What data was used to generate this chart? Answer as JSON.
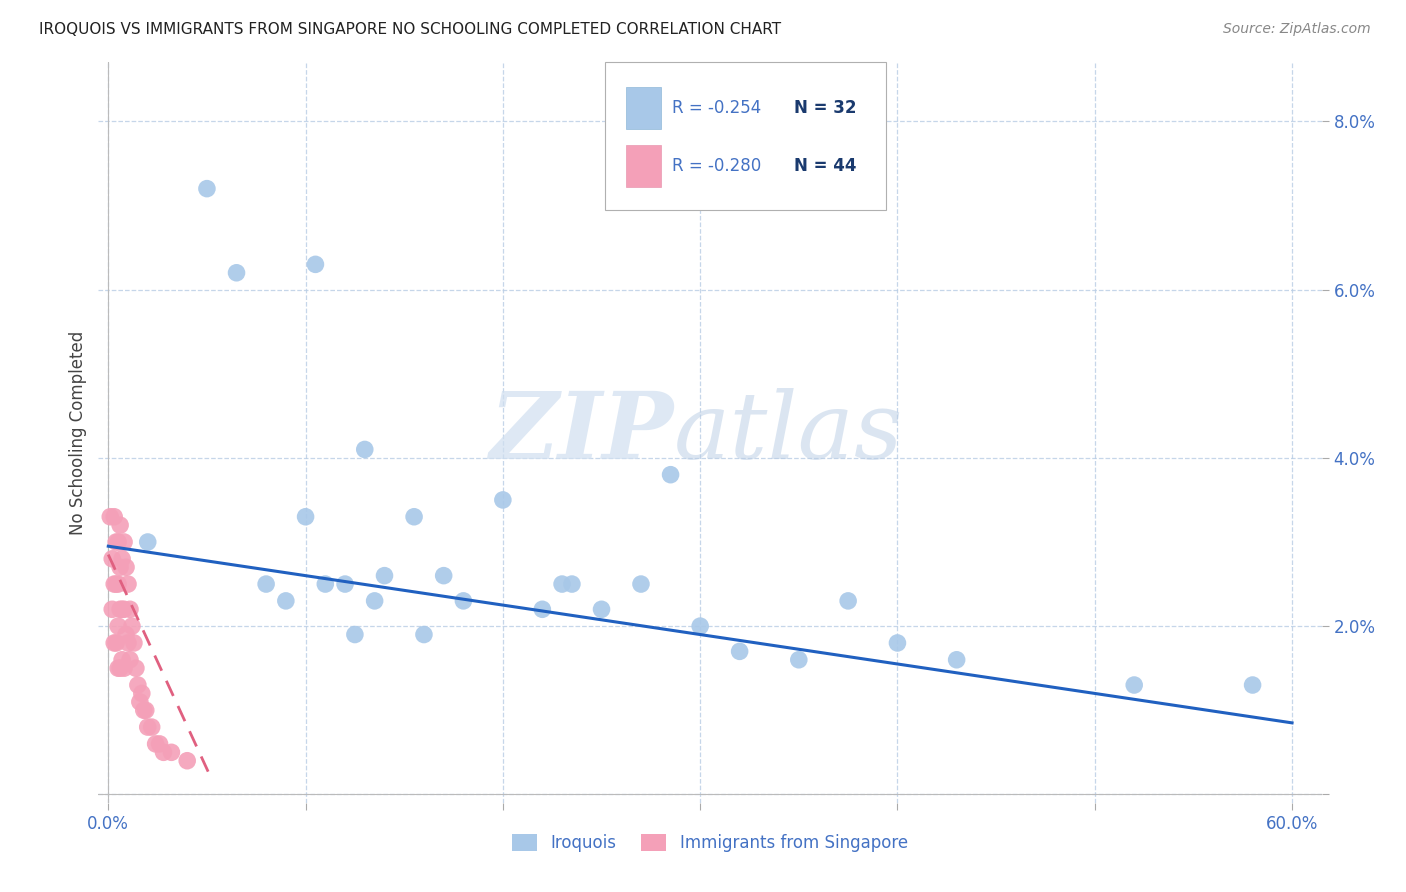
{
  "title": "IROQUOIS VS IMMIGRANTS FROM SINGAPORE NO SCHOOLING COMPLETED CORRELATION CHART",
  "source": "Source: ZipAtlas.com",
  "ylabel": "No Schooling Completed",
  "xlabel": "",
  "xlim": [
    -0.005,
    0.615
  ],
  "ylim": [
    -0.001,
    0.087
  ],
  "xticks": [
    0.0,
    0.1,
    0.2,
    0.3,
    0.4,
    0.5,
    0.6
  ],
  "xticklabels": [
    "0.0%",
    "",
    "",
    "",
    "",
    "",
    "60.0%"
  ],
  "yticks": [
    0.0,
    0.02,
    0.04,
    0.06,
    0.08
  ],
  "yticklabels": [
    "",
    "2.0%",
    "4.0%",
    "6.0%",
    "8.0%"
  ],
  "iroquois_color": "#a8c8e8",
  "singapore_color": "#f4a0b8",
  "iroquois_line_color": "#2060c0",
  "singapore_line_color": "#e06080",
  "watermark_zip": "ZIP",
  "watermark_atlas": "atlas",
  "legend_R_iroquois": "-0.254",
  "legend_N_iroquois": "32",
  "legend_R_singapore": "-0.280",
  "legend_N_singapore": "44",
  "legend_color_R": "#4472c4",
  "legend_color_N": "#1a3a6e",
  "iroquois_x": [
    0.02,
    0.05,
    0.065,
    0.08,
    0.09,
    0.1,
    0.105,
    0.11,
    0.12,
    0.125,
    0.13,
    0.135,
    0.14,
    0.155,
    0.16,
    0.17,
    0.18,
    0.2,
    0.22,
    0.23,
    0.235,
    0.25,
    0.27,
    0.285,
    0.3,
    0.32,
    0.35,
    0.375,
    0.4,
    0.43,
    0.52,
    0.58
  ],
  "iroquois_y": [
    0.03,
    0.072,
    0.062,
    0.025,
    0.023,
    0.033,
    0.063,
    0.025,
    0.025,
    0.019,
    0.041,
    0.023,
    0.026,
    0.033,
    0.019,
    0.026,
    0.023,
    0.035,
    0.022,
    0.025,
    0.025,
    0.022,
    0.025,
    0.038,
    0.02,
    0.017,
    0.016,
    0.023,
    0.018,
    0.016,
    0.013,
    0.013
  ],
  "singapore_x": [
    0.001,
    0.002,
    0.002,
    0.003,
    0.003,
    0.003,
    0.004,
    0.004,
    0.004,
    0.005,
    0.005,
    0.005,
    0.005,
    0.006,
    0.006,
    0.006,
    0.006,
    0.007,
    0.007,
    0.007,
    0.008,
    0.008,
    0.008,
    0.009,
    0.009,
    0.01,
    0.01,
    0.011,
    0.011,
    0.012,
    0.013,
    0.014,
    0.015,
    0.016,
    0.017,
    0.018,
    0.019,
    0.02,
    0.022,
    0.024,
    0.026,
    0.028,
    0.032,
    0.04
  ],
  "singapore_y": [
    0.033,
    0.028,
    0.022,
    0.033,
    0.025,
    0.018,
    0.03,
    0.025,
    0.018,
    0.03,
    0.025,
    0.02,
    0.015,
    0.032,
    0.027,
    0.022,
    0.015,
    0.028,
    0.022,
    0.016,
    0.03,
    0.022,
    0.015,
    0.027,
    0.019,
    0.025,
    0.018,
    0.022,
    0.016,
    0.02,
    0.018,
    0.015,
    0.013,
    0.011,
    0.012,
    0.01,
    0.01,
    0.008,
    0.008,
    0.006,
    0.006,
    0.005,
    0.005,
    0.004
  ],
  "iroquois_trendline_x": [
    0.0,
    0.6
  ],
  "iroquois_trendline_y": [
    0.0295,
    0.0085
  ],
  "singapore_trendline_x": [
    0.0,
    0.052
  ],
  "singapore_trendline_y": [
    0.0285,
    0.002
  ]
}
